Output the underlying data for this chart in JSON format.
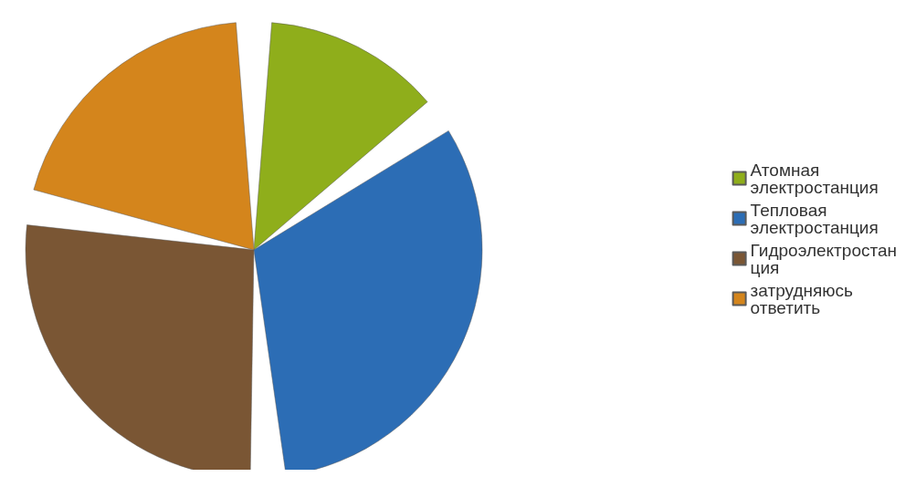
{
  "chart_data": {
    "type": "pie",
    "categories": [
      "Атомная электростанция",
      "Тепловая электростанция",
      "Гидроэлектростанция",
      "затрудняюсь ответить"
    ],
    "values": [
      15,
      34,
      29,
      22
    ],
    "colors": [
      "#8fae1b",
      "#2c6db5",
      "#7a5634",
      "#d4851c"
    ],
    "legend": "right"
  }
}
